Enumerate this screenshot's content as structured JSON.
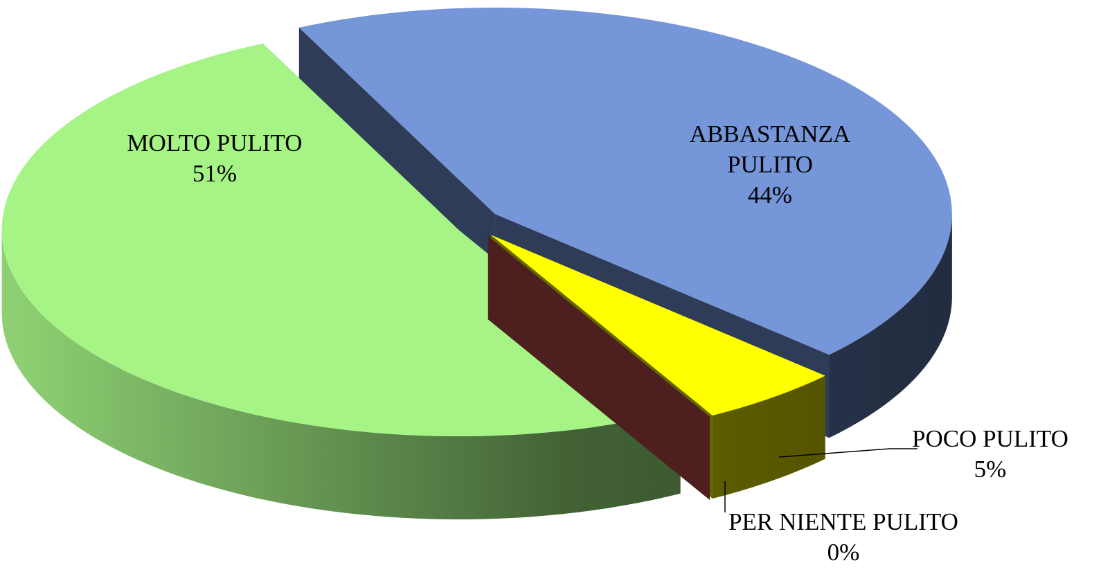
{
  "chart_data": {
    "type": "pie",
    "categories": [
      "MOLTO PULITO",
      "ABBASTANZA PULITO",
      "POCO PULITO",
      "PER NIENTE PULITO"
    ],
    "values": [
      51,
      44,
      5,
      0
    ],
    "value_labels": [
      "51%",
      "44%",
      "5%",
      "0%"
    ],
    "colors": [
      "#a6f486",
      "#7596d9",
      "#ffff00",
      "#c0504d"
    ]
  }
}
